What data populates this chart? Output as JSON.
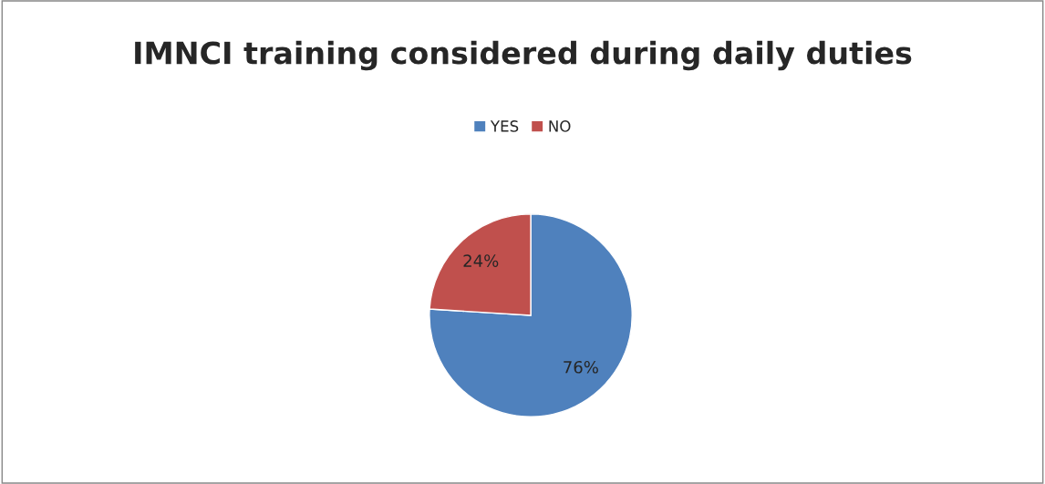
{
  "chart_data": {
    "type": "pie",
    "title": "IMNCI training considered during daily duties",
    "categories": [
      "YES",
      "NO"
    ],
    "values": [
      76,
      24
    ],
    "colors": [
      "#4f81bd",
      "#c0504d"
    ],
    "value_labels": [
      "76%",
      "24%"
    ],
    "legend": "top"
  }
}
